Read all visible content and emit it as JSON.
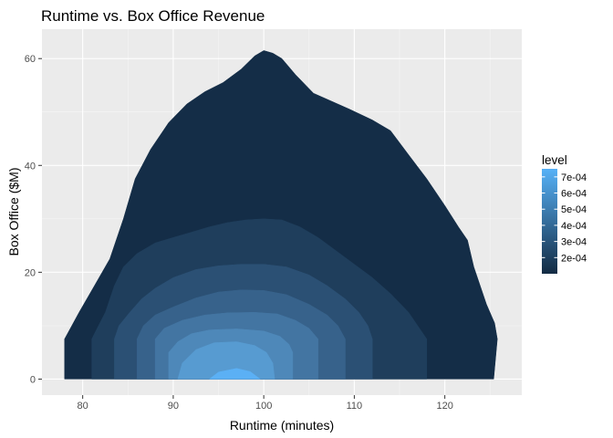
{
  "chart_data": {
    "type": "filled-contour",
    "title": "Runtime vs. Box Office Revenue",
    "xlabel": "Runtime (minutes)",
    "ylabel": "Box Office ($M)",
    "xlim": [
      75.5,
      128.5
    ],
    "ylim": [
      -3,
      65.5
    ],
    "x_ticks": [
      80,
      90,
      100,
      110,
      120
    ],
    "y_ticks": [
      0,
      20,
      40,
      60
    ],
    "x_tick_labels": [
      "80",
      "90",
      "100",
      "110",
      "120"
    ],
    "y_tick_labels": [
      "0",
      "20",
      "40",
      "60"
    ],
    "grid": true,
    "legend": {
      "title": "level",
      "position": "right",
      "range": [
        0.0001,
        0.00075
      ],
      "breaks": [
        0.0002,
        0.0003,
        0.0004,
        0.0005,
        0.0006,
        0.0007
      ],
      "labels": [
        "2e-04",
        "3e-04",
        "4e-04",
        "5e-04",
        "6e-04",
        "7e-04"
      ],
      "color_low": "#132B43",
      "color_high": "#56B1F7"
    },
    "colors": {
      "panel": "#EBEBEB",
      "grid_major": "#FFFFFF",
      "grid_minor": "#F5F5F5"
    },
    "levels": [
      {
        "color": "#142D47",
        "polygon": [
          [
            78,
            0
          ],
          [
            78,
            7.5
          ],
          [
            79.6,
            12.5
          ],
          [
            81.3,
            17.5
          ],
          [
            83,
            22.5
          ],
          [
            84.5,
            30
          ],
          [
            85.8,
            37.5
          ],
          [
            87.5,
            43
          ],
          [
            89.5,
            48
          ],
          [
            91.5,
            51.5
          ],
          [
            93.5,
            53.8
          ],
          [
            95.5,
            55.5
          ],
          [
            97.5,
            58
          ],
          [
            99,
            60.5
          ],
          [
            100,
            61.5
          ],
          [
            101,
            61
          ],
          [
            102,
            60
          ],
          [
            103.5,
            57
          ],
          [
            105.5,
            53.5
          ],
          [
            107.5,
            52
          ],
          [
            109.5,
            50.5
          ],
          [
            112,
            48.5
          ],
          [
            114,
            46.5
          ],
          [
            116,
            42
          ],
          [
            118,
            37.5
          ],
          [
            120,
            32.5
          ],
          [
            121.5,
            28.5
          ],
          [
            122.5,
            26
          ],
          [
            123.2,
            21
          ],
          [
            124.6,
            14
          ],
          [
            125.5,
            10.5
          ],
          [
            125.8,
            7.5
          ],
          [
            125.4,
            0
          ]
        ]
      },
      {
        "color": "#1F3E5C",
        "polygon": [
          [
            81,
            0
          ],
          [
            81,
            7.5
          ],
          [
            81.6,
            9.5
          ],
          [
            82.5,
            12.5
          ],
          [
            83.5,
            17.5
          ],
          [
            84.5,
            21
          ],
          [
            86,
            23.5
          ],
          [
            88,
            25.5
          ],
          [
            90,
            26.5
          ],
          [
            92,
            27.5
          ],
          [
            94,
            28.5
          ],
          [
            96,
            29.3
          ],
          [
            98,
            29.8
          ],
          [
            100,
            30
          ],
          [
            102,
            29.8
          ],
          [
            104,
            28.5
          ],
          [
            106,
            26.5
          ],
          [
            108,
            24
          ],
          [
            110,
            21.5
          ],
          [
            112,
            19
          ],
          [
            114,
            16
          ],
          [
            116,
            12.5
          ],
          [
            118,
            7.5
          ],
          [
            118,
            0
          ]
        ]
      },
      {
        "color": "#2B5074",
        "polygon": [
          [
            83.5,
            0
          ],
          [
            83.5,
            7.5
          ],
          [
            84,
            10
          ],
          [
            85.2,
            12.5
          ],
          [
            86.5,
            15
          ],
          [
            88,
            17
          ],
          [
            90,
            19
          ],
          [
            92.5,
            20.5
          ],
          [
            95,
            21.2
          ],
          [
            97.5,
            21.5
          ],
          [
            100,
            21.5
          ],
          [
            102.5,
            21
          ],
          [
            105,
            19.5
          ],
          [
            107,
            17.5
          ],
          [
            109,
            15
          ],
          [
            110.5,
            12.5
          ],
          [
            111.5,
            10
          ],
          [
            112,
            7.5
          ],
          [
            112,
            0
          ]
        ]
      },
      {
        "color": "#37628B",
        "polygon": [
          [
            86,
            0
          ],
          [
            86,
            7.5
          ],
          [
            86.7,
            10
          ],
          [
            88,
            12
          ],
          [
            90,
            13.5
          ],
          [
            92.5,
            15.2
          ],
          [
            95,
            16.3
          ],
          [
            97.5,
            16.7
          ],
          [
            100,
            16.6
          ],
          [
            102.5,
            15.8
          ],
          [
            105,
            14
          ],
          [
            107,
            12
          ],
          [
            108.2,
            10
          ],
          [
            109,
            7.5
          ],
          [
            109,
            0
          ]
        ]
      },
      {
        "color": "#4375A2",
        "polygon": [
          [
            88,
            0
          ],
          [
            88,
            7.5
          ],
          [
            89,
            9.5
          ],
          [
            91,
            11
          ],
          [
            93.5,
            12
          ],
          [
            96,
            12.4
          ],
          [
            99,
            12.5
          ],
          [
            101.5,
            12.2
          ],
          [
            103.5,
            11
          ],
          [
            105,
            9.5
          ],
          [
            106,
            7.5
          ],
          [
            106,
            0
          ]
        ]
      },
      {
        "color": "#4E88B9",
        "polygon": [
          [
            89.5,
            0
          ],
          [
            89.5,
            5
          ],
          [
            90.5,
            7
          ],
          [
            92,
            8.5
          ],
          [
            94,
            9.2
          ],
          [
            97,
            9.4
          ],
          [
            100,
            9
          ],
          [
            101.8,
            8
          ],
          [
            102.8,
            6.5
          ],
          [
            103.2,
            5
          ],
          [
            103.2,
            0
          ]
        ]
      },
      {
        "color": "#579BD1",
        "polygon": [
          [
            90.5,
            0
          ],
          [
            91,
            3
          ],
          [
            92.5,
            5.5
          ],
          [
            94.5,
            6.8
          ],
          [
            97,
            7
          ],
          [
            99,
            6.3
          ],
          [
            100.3,
            5
          ],
          [
            101,
            3
          ],
          [
            101.2,
            0
          ]
        ]
      },
      {
        "color": "#5BB0F5",
        "polygon": [
          [
            94,
            0
          ],
          [
            95,
            1.3
          ],
          [
            97,
            2
          ],
          [
            98.5,
            1.4
          ],
          [
            99.6,
            0
          ]
        ]
      }
    ]
  }
}
